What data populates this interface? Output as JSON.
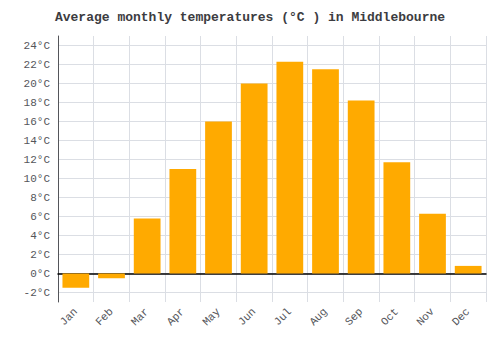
{
  "chart_data": {
    "type": "bar",
    "title": "Average monthly temperatures (°C ) in Middlebourne",
    "categories": [
      "Jan",
      "Feb",
      "Mar",
      "Apr",
      "May",
      "Jun",
      "Jul",
      "Aug",
      "Sep",
      "Oct",
      "Nov",
      "Dec"
    ],
    "values": [
      -1.5,
      -0.5,
      5.8,
      11.0,
      16.0,
      20.0,
      22.3,
      21.5,
      18.2,
      11.7,
      6.3,
      0.8
    ],
    "color": "#FFAA00",
    "ylim": [
      -3,
      25
    ],
    "yticks": [
      {
        "value": -2,
        "label": "-2°C"
      },
      {
        "value": 0,
        "label": "0°C"
      },
      {
        "value": 2,
        "label": "2°C"
      },
      {
        "value": 4,
        "label": "4°C"
      },
      {
        "value": 6,
        "label": "6°C"
      },
      {
        "value": 8,
        "label": "8°C"
      },
      {
        "value": 10,
        "label": "10°C"
      },
      {
        "value": 12,
        "label": "12°C"
      },
      {
        "value": 14,
        "label": "14°C"
      },
      {
        "value": 16,
        "label": "16°C"
      },
      {
        "value": 18,
        "label": "18°C"
      },
      {
        "value": 20,
        "label": "20°C"
      },
      {
        "value": 22,
        "label": "22°C"
      },
      {
        "value": 24,
        "label": "24°C"
      }
    ],
    "grid": true
  }
}
